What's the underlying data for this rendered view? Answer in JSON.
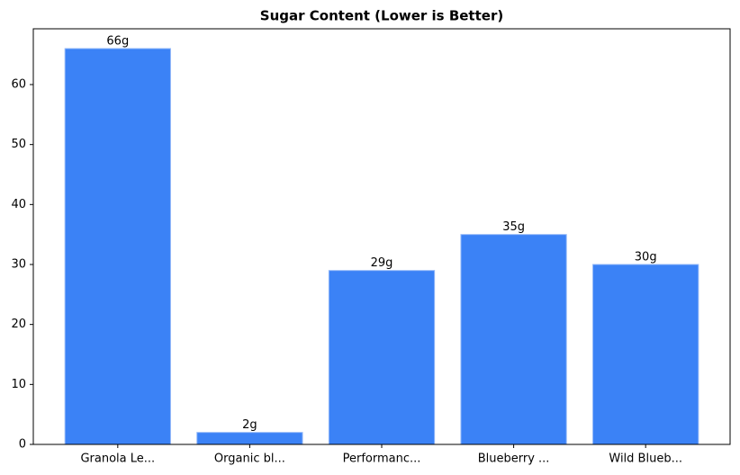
{
  "chart_data": {
    "type": "bar",
    "title": "Sugar Content (Lower is Better)",
    "categories": [
      "Granola Le...",
      "Organic bl...",
      "Performanc...",
      "Blueberry ...",
      "Wild Blueb..."
    ],
    "values": [
      66,
      2,
      29,
      35,
      30
    ],
    "value_labels": [
      "66g",
      "2g",
      "29g",
      "35g",
      "30g"
    ],
    "color": "#3b82f6",
    "ylim": [
      0,
      69.3
    ],
    "yticks": [
      0,
      10,
      20,
      30,
      40,
      50,
      60
    ],
    "grid": false
  }
}
